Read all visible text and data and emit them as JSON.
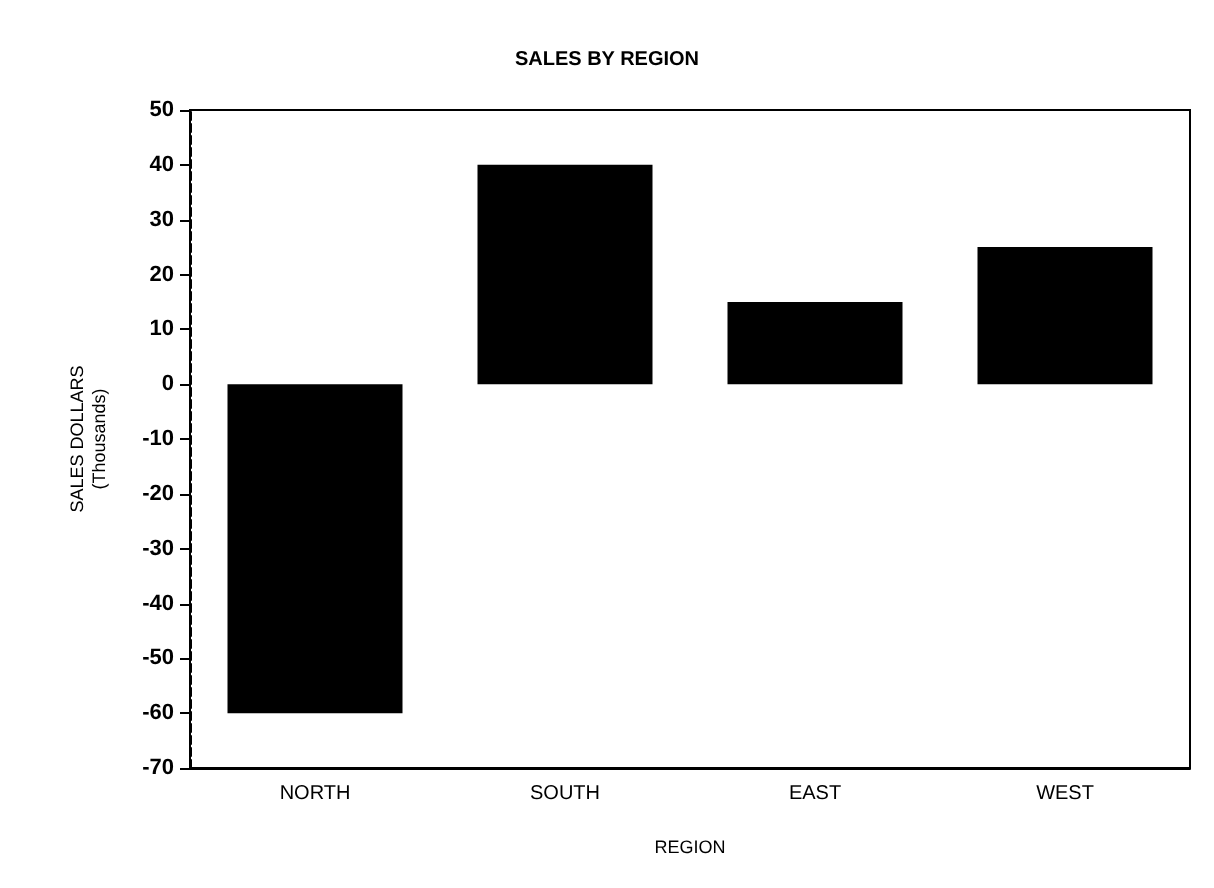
{
  "chart_data": {
    "type": "bar",
    "subtitle": "SALES BY REGION",
    "xlabel": "REGION",
    "ylabel": "SALES DOLLARS\n(Thousands)",
    "categories": [
      "NORTH",
      "SOUTH",
      "EAST",
      "WEST"
    ],
    "values": [
      -60,
      40,
      15,
      25
    ],
    "color": "#000000",
    "ylim": [
      -70,
      50
    ],
    "yticks": [
      -70,
      -60,
      -50,
      -40,
      -30,
      -20,
      -10,
      0,
      10,
      20,
      30,
      40,
      50
    ],
    "grid": false
  }
}
